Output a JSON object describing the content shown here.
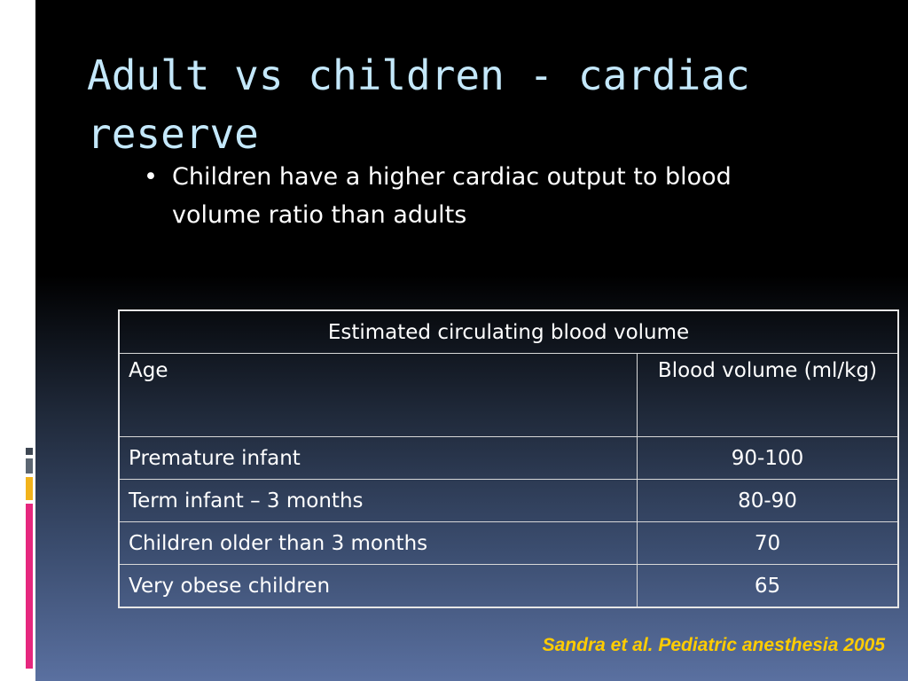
{
  "colors": {
    "title": "#c4e8fb",
    "text": "#ffffff",
    "citation": "#ffcc00",
    "accent_gray": "#4f5a66",
    "accent_yellow": "#f2b31b",
    "accent_pink": "#e6277e"
  },
  "slide": {
    "title": "Adult vs children - cardiac reserve",
    "bullets": [
      {
        "text": "Children have a higher cardiac output to blood volume ratio than adults"
      }
    ],
    "table": {
      "caption": "Estimated circulating blood volume",
      "headers": [
        "Age",
        "Blood volume (ml/kg)"
      ],
      "rows": [
        {
          "age": "Premature infant",
          "volume": "90-100"
        },
        {
          "age": "Term infant – 3 months",
          "volume": "80-90"
        },
        {
          "age": "Children older than 3 months",
          "volume": "70"
        },
        {
          "age": "Very obese children",
          "volume": "65"
        }
      ]
    },
    "citation": "Sandra et al. Pediatric anesthesia 2005"
  }
}
